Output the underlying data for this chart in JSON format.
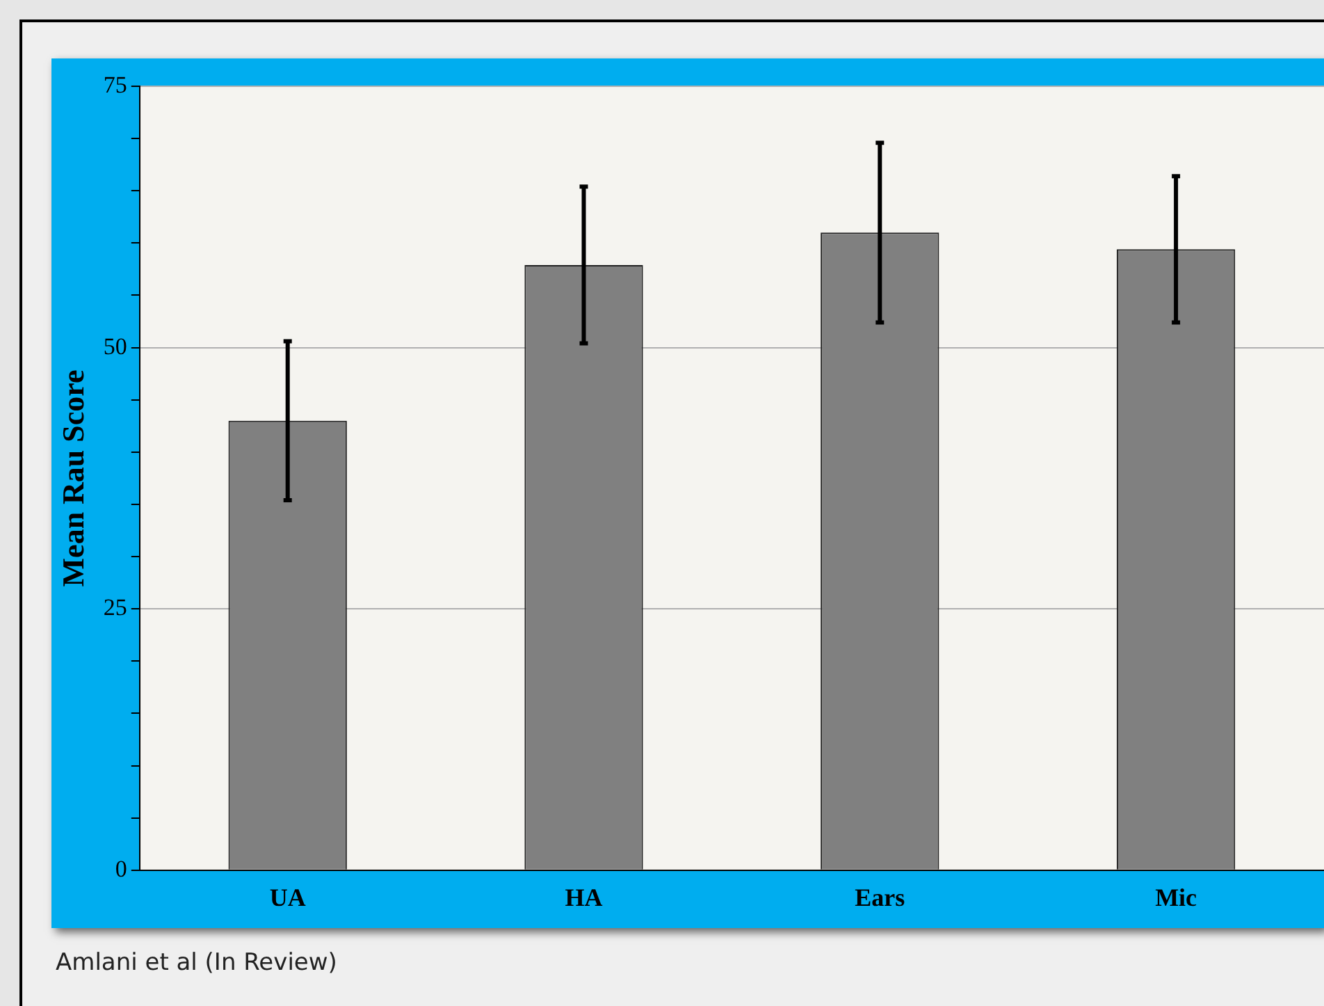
{
  "chart_data": {
    "type": "bar",
    "ylabel": "Mean Rau Score",
    "categories": [
      "UA",
      "HA",
      "Ears",
      "Mic"
    ],
    "values": [
      43.0,
      57.9,
      61.0,
      59.4
    ],
    "errors": [
      7.6,
      7.5,
      8.6,
      7.0
    ],
    "color": "#808080",
    "ylim": [
      0,
      75
    ],
    "yticks": [
      0,
      {
        "value": 5,
        "label": null
      },
      {
        "value": 10,
        "label": null
      },
      {
        "value": 15,
        "label": null
      },
      {
        "value": 20,
        "label": null
      },
      25,
      {
        "value": 30,
        "label": null
      },
      {
        "value": 35,
        "label": null
      },
      {
        "value": 40,
        "label": null
      },
      {
        "value": 45,
        "label": null
      },
      50,
      {
        "value": 55,
        "label": null
      },
      {
        "value": 60,
        "label": null
      },
      {
        "value": 65,
        "label": null
      },
      {
        "value": 70,
        "label": null
      },
      75
    ],
    "grid": "y",
    "annotations": [
      "Amlani et al (In Review)"
    ]
  }
}
